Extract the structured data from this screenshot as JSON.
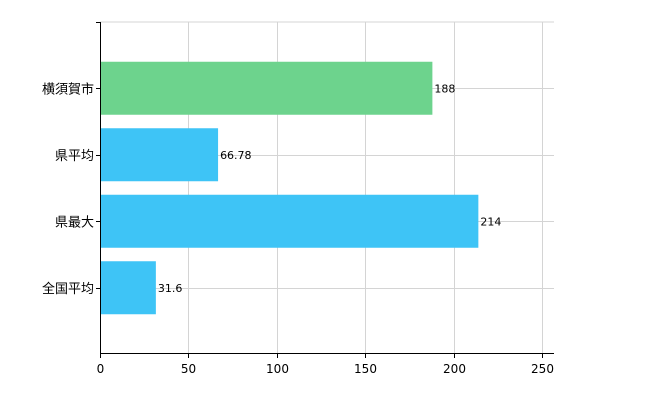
{
  "chart_data": {
    "type": "bar",
    "orientation": "horizontal",
    "categories": [
      "横須賀市",
      "県平均",
      "県最大",
      "全国平均"
    ],
    "values": [
      188,
      66.78,
      214,
      31.6
    ],
    "data_labels": [
      "188",
      "66.78",
      "214",
      "31.6"
    ],
    "bar_colors": [
      "#6dd38d",
      "#3ec4f6",
      "#3ec4f6",
      "#3ec4f6"
    ],
    "xlim": [
      0,
      250
    ],
    "x_ticks": [
      0,
      50,
      100,
      150,
      200,
      250
    ],
    "x_tick_labels": [
      "0",
      "50",
      "100",
      "150",
      "200",
      "250"
    ],
    "grid": true,
    "title": "",
    "xlabel": "",
    "ylabel": ""
  }
}
